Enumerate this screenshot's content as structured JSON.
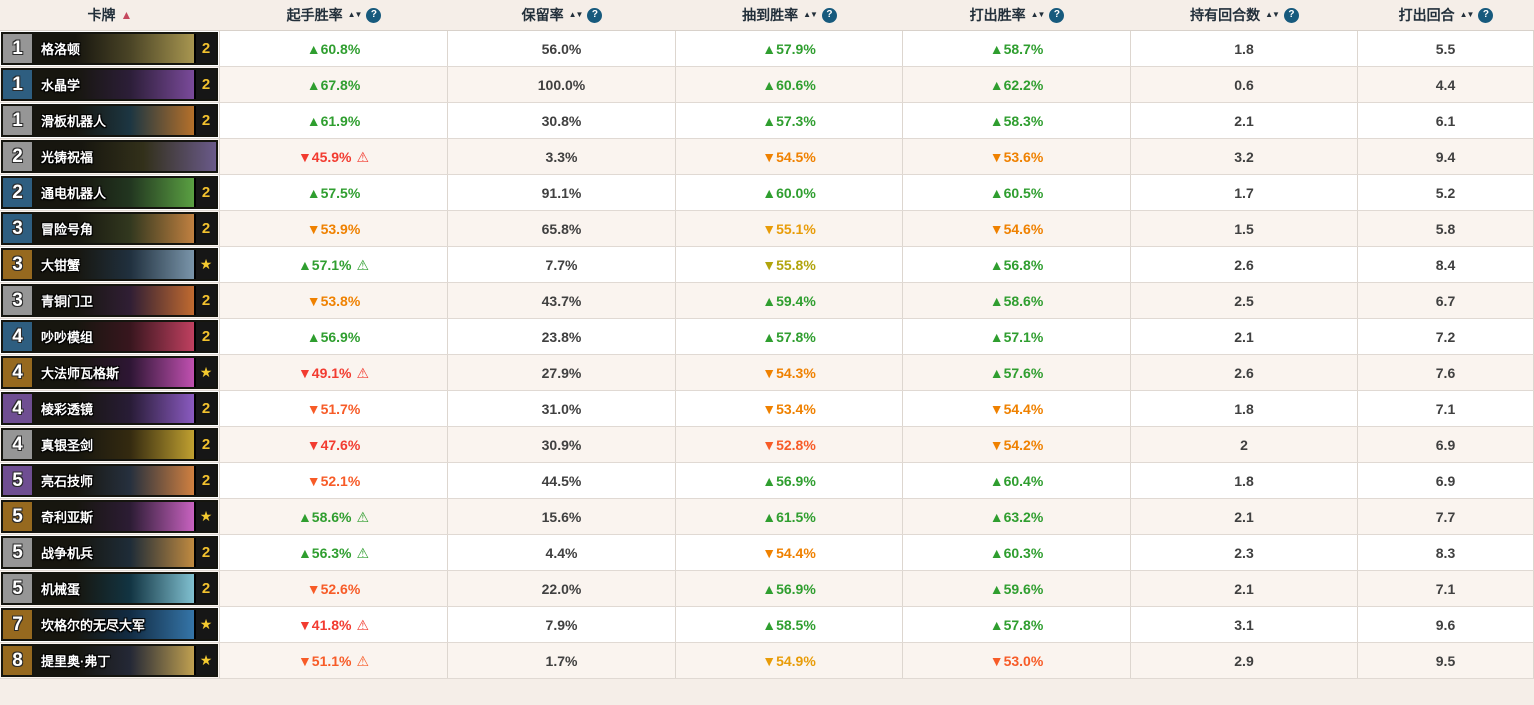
{
  "icons": {
    "sort_active": "▲",
    "sort_both": "▲▼",
    "help": "?",
    "warning": "⚠",
    "star": "★"
  },
  "colors": {
    "green": "#2f9e2f",
    "olive": "#b1a40c",
    "amber": "#e89c08",
    "orange": "#ef8100",
    "orange_red": "#f75b27",
    "red": "#f23b30",
    "sort_active": "#c5485e",
    "help_bg": "#175a7d",
    "gold_count": "#f2c12e",
    "rarity_common": "#969696",
    "rarity_rare": "#2e5e80",
    "rarity_epic": "#6f4e92",
    "rarity_legendary": "#96691f"
  },
  "table": {
    "columns": [
      {
        "label": "卡牌",
        "sorted": "asc"
      },
      {
        "label": "起手胜率",
        "help": true
      },
      {
        "label": "保留率",
        "help": true
      },
      {
        "label": "抽到胜率",
        "help": true
      },
      {
        "label": "打出胜率",
        "help": true
      },
      {
        "label": "持有回合数",
        "help": true
      },
      {
        "label": "打出回合",
        "help": true
      }
    ],
    "rows": [
      {
        "cost": "1",
        "name": "格洛顿",
        "rarity": "common",
        "count": "2",
        "art": [
          "#4a4426",
          "#a89650"
        ],
        "mulligan": {
          "dir": "up",
          "value": "60.8%",
          "tone": "green",
          "warn": null
        },
        "kept": "56.0%",
        "drawn": {
          "dir": "up",
          "value": "57.9%",
          "tone": "green",
          "warn": null
        },
        "played": {
          "dir": "up",
          "value": "58.7%",
          "tone": "green",
          "warn": null
        },
        "held": "1.8",
        "turn": "5.5"
      },
      {
        "cost": "1",
        "name": "水晶学",
        "rarity": "rare",
        "count": "2",
        "art": [
          "#2c1e38",
          "#7a4a9a"
        ],
        "mulligan": {
          "dir": "up",
          "value": "67.8%",
          "tone": "green",
          "warn": null
        },
        "kept": "100.0%",
        "drawn": {
          "dir": "up",
          "value": "60.6%",
          "tone": "green",
          "warn": null
        },
        "played": {
          "dir": "up",
          "value": "62.2%",
          "tone": "green",
          "warn": null
        },
        "held": "0.6",
        "turn": "4.4"
      },
      {
        "cost": "1",
        "name": "滑板机器人",
        "rarity": "common",
        "count": "2",
        "art": [
          "#1c3642",
          "#b5702a"
        ],
        "mulligan": {
          "dir": "up",
          "value": "61.9%",
          "tone": "green",
          "warn": null
        },
        "kept": "30.8%",
        "drawn": {
          "dir": "up",
          "value": "57.3%",
          "tone": "green",
          "warn": null
        },
        "played": {
          "dir": "up",
          "value": "58.3%",
          "tone": "green",
          "warn": null
        },
        "held": "2.1",
        "turn": "6.1"
      },
      {
        "cost": "2",
        "name": "光铸祝福",
        "rarity": "common",
        "count": "",
        "art": [
          "#32301a",
          "#6a5a8a"
        ],
        "mulligan": {
          "dir": "down",
          "value": "45.9%",
          "tone": "red",
          "warn": "red"
        },
        "kept": "3.3%",
        "drawn": {
          "dir": "down",
          "value": "54.5%",
          "tone": "orange",
          "warn": null
        },
        "played": {
          "dir": "down",
          "value": "53.6%",
          "tone": "orange",
          "warn": null
        },
        "held": "3.2",
        "turn": "9.4"
      },
      {
        "cost": "2",
        "name": "通电机器人",
        "rarity": "rare",
        "count": "2",
        "art": [
          "#223620",
          "#5aa042"
        ],
        "mulligan": {
          "dir": "up",
          "value": "57.5%",
          "tone": "green",
          "warn": null
        },
        "kept": "91.1%",
        "drawn": {
          "dir": "up",
          "value": "60.0%",
          "tone": "green",
          "warn": null
        },
        "played": {
          "dir": "up",
          "value": "60.5%",
          "tone": "green",
          "warn": null
        },
        "held": "1.7",
        "turn": "5.2"
      },
      {
        "cost": "3",
        "name": "冒险号角",
        "rarity": "rare",
        "count": "2",
        "art": [
          "#32381f",
          "#c08040"
        ],
        "mulligan": {
          "dir": "down",
          "value": "53.9%",
          "tone": "orange",
          "warn": null
        },
        "kept": "65.8%",
        "drawn": {
          "dir": "down",
          "value": "55.1%",
          "tone": "amber",
          "warn": null
        },
        "played": {
          "dir": "down",
          "value": "54.6%",
          "tone": "orange",
          "warn": null
        },
        "held": "1.5",
        "turn": "5.8"
      },
      {
        "cost": "3",
        "name": "大钳蟹",
        "rarity": "legendary",
        "count": "★",
        "art": [
          "#20303e",
          "#7a95aa"
        ],
        "mulligan": {
          "dir": "up",
          "value": "57.1%",
          "tone": "green",
          "warn": "green"
        },
        "kept": "7.7%",
        "drawn": {
          "dir": "down",
          "value": "55.8%",
          "tone": "olive",
          "warn": null
        },
        "played": {
          "dir": "up",
          "value": "56.8%",
          "tone": "green",
          "warn": null
        },
        "held": "2.6",
        "turn": "8.4"
      },
      {
        "cost": "3",
        "name": "青铜门卫",
        "rarity": "common",
        "count": "2",
        "art": [
          "#301e34",
          "#c06a30"
        ],
        "mulligan": {
          "dir": "down",
          "value": "53.8%",
          "tone": "orange",
          "warn": null
        },
        "kept": "43.7%",
        "drawn": {
          "dir": "up",
          "value": "59.4%",
          "tone": "green",
          "warn": null
        },
        "played": {
          "dir": "up",
          "value": "58.6%",
          "tone": "green",
          "warn": null
        },
        "held": "2.5",
        "turn": "6.7"
      },
      {
        "cost": "4",
        "name": "吵吵模组",
        "rarity": "rare",
        "count": "2",
        "art": [
          "#38161e",
          "#c04060"
        ],
        "mulligan": {
          "dir": "up",
          "value": "56.9%",
          "tone": "green",
          "warn": null
        },
        "kept": "23.8%",
        "drawn": {
          "dir": "up",
          "value": "57.8%",
          "tone": "green",
          "warn": null
        },
        "played": {
          "dir": "up",
          "value": "57.1%",
          "tone": "green",
          "warn": null
        },
        "held": "2.1",
        "turn": "7.2"
      },
      {
        "cost": "4",
        "name": "大法师瓦格斯",
        "rarity": "legendary",
        "count": "★",
        "art": [
          "#2e1634",
          "#c050b0"
        ],
        "mulligan": {
          "dir": "down",
          "value": "49.1%",
          "tone": "red",
          "warn": "red"
        },
        "kept": "27.9%",
        "drawn": {
          "dir": "down",
          "value": "54.3%",
          "tone": "orange",
          "warn": null
        },
        "played": {
          "dir": "up",
          "value": "57.6%",
          "tone": "green",
          "warn": null
        },
        "held": "2.6",
        "turn": "7.6"
      },
      {
        "cost": "4",
        "name": "棱彩透镜",
        "rarity": "epic",
        "count": "2",
        "art": [
          "#281c36",
          "#8a5ac0"
        ],
        "mulligan": {
          "dir": "down",
          "value": "51.7%",
          "tone": "orange_red",
          "warn": null
        },
        "kept": "31.0%",
        "drawn": {
          "dir": "down",
          "value": "53.4%",
          "tone": "orange",
          "warn": null
        },
        "played": {
          "dir": "down",
          "value": "54.4%",
          "tone": "orange",
          "warn": null
        },
        "held": "1.8",
        "turn": "7.1"
      },
      {
        "cost": "4",
        "name": "真银圣剑",
        "rarity": "common",
        "count": "2",
        "art": [
          "#342a10",
          "#c0a030"
        ],
        "mulligan": {
          "dir": "down",
          "value": "47.6%",
          "tone": "red",
          "warn": null
        },
        "kept": "30.9%",
        "drawn": {
          "dir": "down",
          "value": "52.8%",
          "tone": "orange_red",
          "warn": null
        },
        "played": {
          "dir": "down",
          "value": "54.2%",
          "tone": "orange",
          "warn": null
        },
        "held": "2",
        "turn": "6.9"
      },
      {
        "cost": "5",
        "name": "亮石技师",
        "rarity": "epic",
        "count": "2",
        "art": [
          "#26303e",
          "#d08040"
        ],
        "mulligan": {
          "dir": "down",
          "value": "52.1%",
          "tone": "orange_red",
          "warn": null
        },
        "kept": "44.5%",
        "drawn": {
          "dir": "up",
          "value": "56.9%",
          "tone": "green",
          "warn": null
        },
        "played": {
          "dir": "up",
          "value": "60.4%",
          "tone": "green",
          "warn": null
        },
        "held": "1.8",
        "turn": "6.9"
      },
      {
        "cost": "5",
        "name": "奇利亚斯",
        "rarity": "legendary",
        "count": "★",
        "art": [
          "#2c1c34",
          "#c862c0"
        ],
        "mulligan": {
          "dir": "up",
          "value": "58.6%",
          "tone": "green",
          "warn": "green"
        },
        "kept": "15.6%",
        "drawn": {
          "dir": "up",
          "value": "61.5%",
          "tone": "green",
          "warn": null
        },
        "played": {
          "dir": "up",
          "value": "63.2%",
          "tone": "green",
          "warn": null
        },
        "held": "2.1",
        "turn": "7.7"
      },
      {
        "cost": "5",
        "name": "战争机兵",
        "rarity": "common",
        "count": "2",
        "art": [
          "#1e2c38",
          "#c08a40"
        ],
        "mulligan": {
          "dir": "up",
          "value": "56.3%",
          "tone": "green",
          "warn": "green"
        },
        "kept": "4.4%",
        "drawn": {
          "dir": "down",
          "value": "54.4%",
          "tone": "orange",
          "warn": null
        },
        "played": {
          "dir": "up",
          "value": "60.3%",
          "tone": "green",
          "warn": null
        },
        "held": "2.3",
        "turn": "8.3"
      },
      {
        "cost": "5",
        "name": "机械蛋",
        "rarity": "common",
        "count": "2",
        "art": [
          "#123442",
          "#80c0d0"
        ],
        "mulligan": {
          "dir": "down",
          "value": "52.6%",
          "tone": "orange_red",
          "warn": null
        },
        "kept": "22.0%",
        "drawn": {
          "dir": "up",
          "value": "56.9%",
          "tone": "green",
          "warn": null
        },
        "played": {
          "dir": "up",
          "value": "59.6%",
          "tone": "green",
          "warn": null
        },
        "held": "2.1",
        "turn": "7.1"
      },
      {
        "cost": "7",
        "name": "坎格尔的无尽大军",
        "rarity": "legendary",
        "count": "★",
        "art": [
          "#122c44",
          "#3575a8"
        ],
        "mulligan": {
          "dir": "down",
          "value": "41.8%",
          "tone": "red",
          "warn": "red"
        },
        "kept": "7.9%",
        "drawn": {
          "dir": "up",
          "value": "58.5%",
          "tone": "green",
          "warn": null
        },
        "played": {
          "dir": "up",
          "value": "57.8%",
          "tone": "green",
          "warn": null
        },
        "held": "3.1",
        "turn": "9.6"
      },
      {
        "cost": "8",
        "name": "提里奥·弗丁",
        "rarity": "legendary",
        "count": "★",
        "art": [
          "#242836",
          "#c0a050"
        ],
        "mulligan": {
          "dir": "down",
          "value": "51.1%",
          "tone": "orange_red",
          "warn": "orange_red"
        },
        "kept": "1.7%",
        "drawn": {
          "dir": "down",
          "value": "54.9%",
          "tone": "amber",
          "warn": null
        },
        "played": {
          "dir": "down",
          "value": "53.0%",
          "tone": "orange_red",
          "warn": null
        },
        "held": "2.9",
        "turn": "9.5"
      }
    ]
  }
}
